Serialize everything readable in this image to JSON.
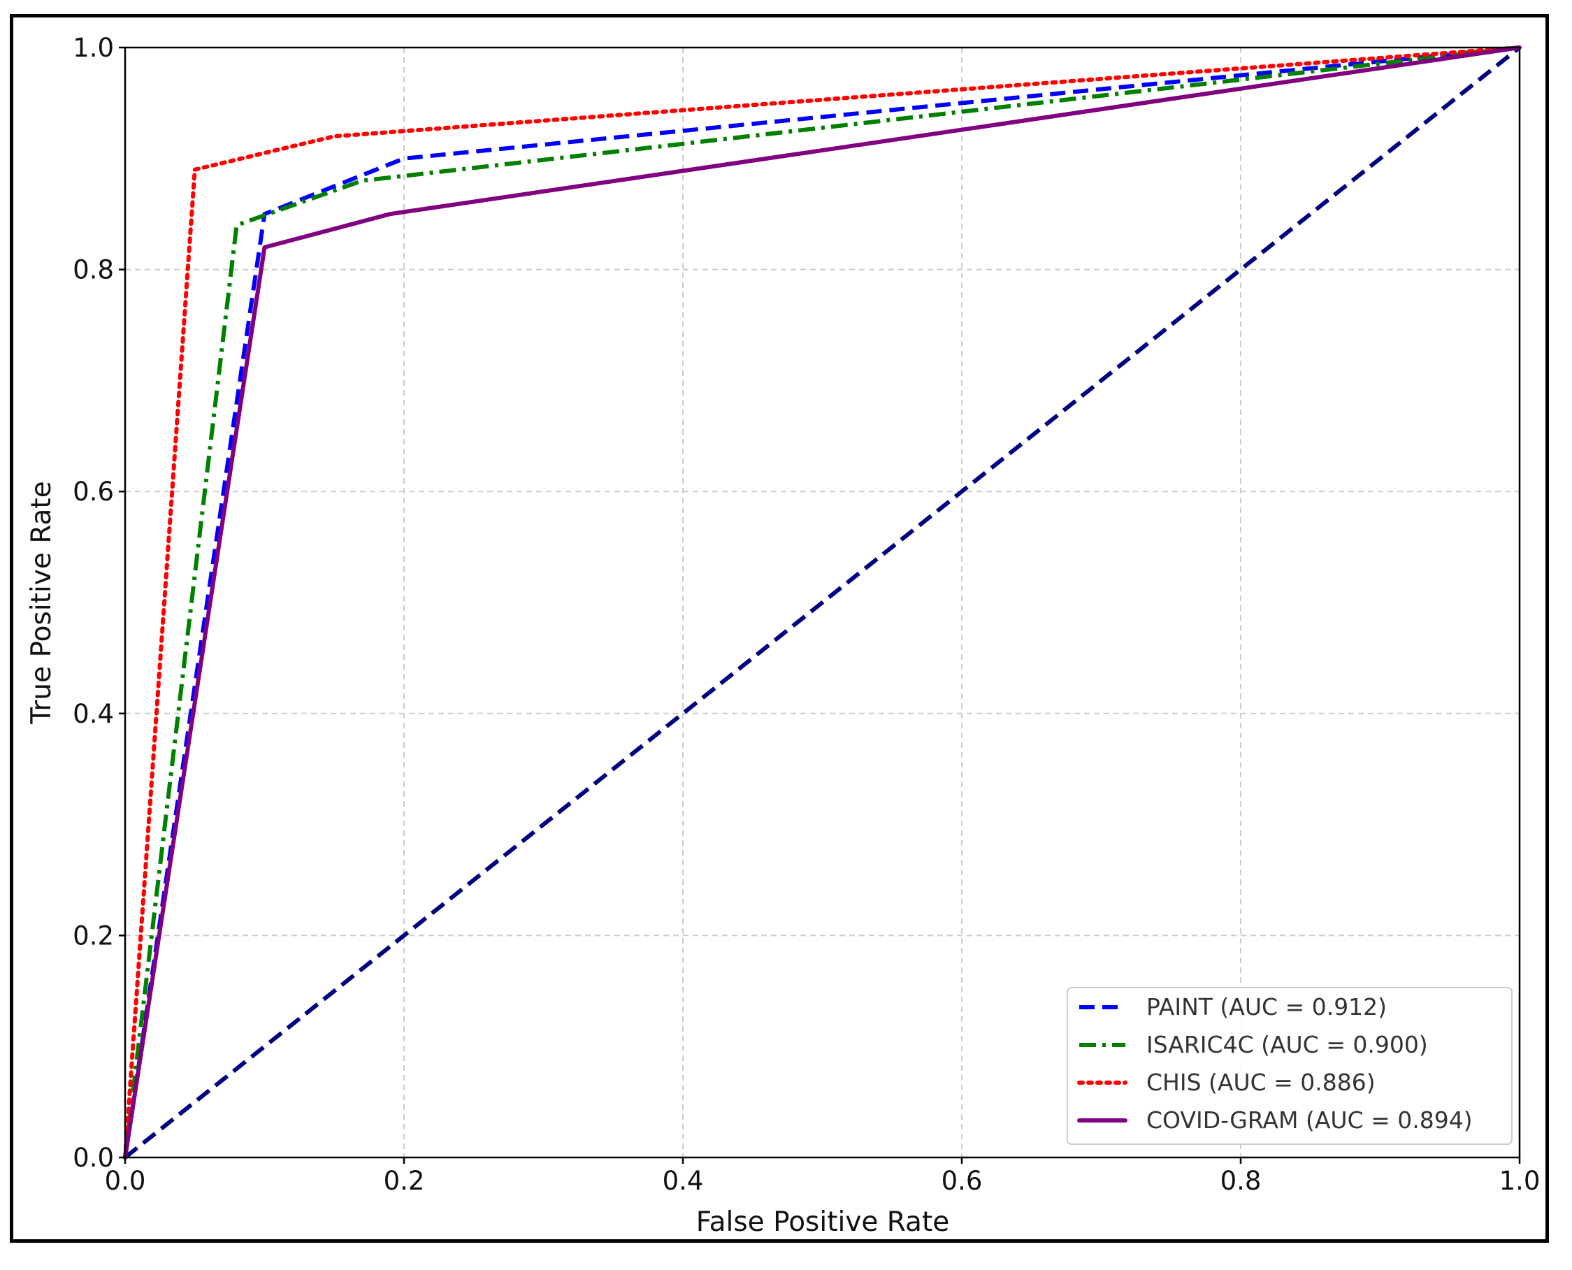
{
  "chart_data": {
    "type": "line",
    "title": "",
    "xlabel": "False Positive Rate",
    "ylabel": "True Positive Rate",
    "xlim": [
      0.0,
      1.0
    ],
    "ylim": [
      0.0,
      1.0
    ],
    "xticks": [
      "0.0",
      "0.2",
      "0.4",
      "0.6",
      "0.8",
      "1.0"
    ],
    "yticks": [
      "0.0",
      "0.2",
      "0.4",
      "0.6",
      "0.8",
      "1.0"
    ],
    "grid": true,
    "legend_position": "lower-right",
    "series": [
      {
        "name": "PAINT (AUC = 0.912)",
        "color": "#0000ff",
        "style": "dashed",
        "x": [
          0.0,
          0.1,
          0.2,
          1.0
        ],
        "y": [
          0.0,
          0.85,
          0.9,
          1.0
        ]
      },
      {
        "name": "ISARIC4C (AUC = 0.900)",
        "color": "#008000",
        "style": "dashdot",
        "x": [
          0.0,
          0.08,
          0.17,
          1.0
        ],
        "y": [
          0.0,
          0.84,
          0.88,
          1.0
        ]
      },
      {
        "name": "CHIS (AUC = 0.886)",
        "color": "#ff0000",
        "style": "dotted",
        "x": [
          0.0,
          0.05,
          0.15,
          1.0
        ],
        "y": [
          0.0,
          0.89,
          0.92,
          1.0
        ]
      },
      {
        "name": "COVID-GRAM (AUC = 0.894)",
        "color": "#800080",
        "style": "solid",
        "x": [
          0.0,
          0.1,
          0.19,
          1.0
        ],
        "y": [
          0.0,
          0.82,
          0.85,
          1.0
        ]
      }
    ],
    "reference_line": {
      "color": "#000080",
      "style": "dashed",
      "x": [
        0.0,
        1.0
      ],
      "y": [
        0.0,
        1.0
      ]
    }
  }
}
